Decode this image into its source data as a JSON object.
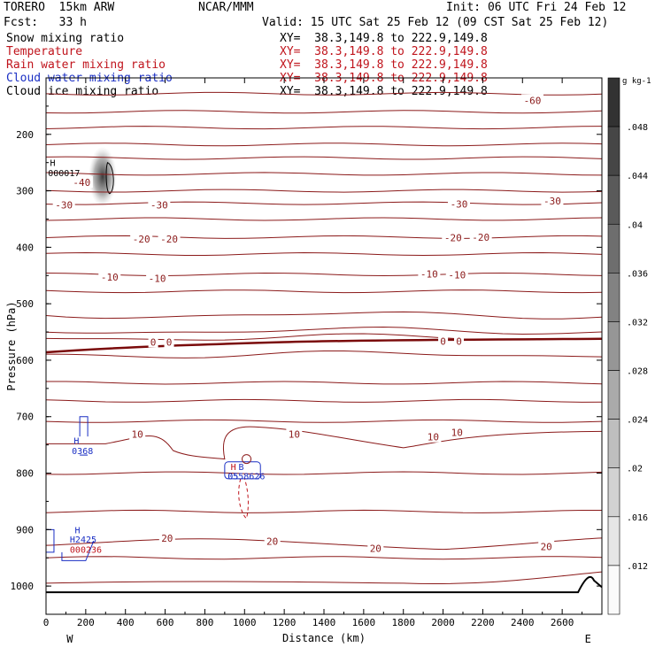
{
  "header": {
    "model": "TORERO  15km ARW",
    "center": "NCAR/MMM",
    "init": "Init: 06 UTC Fri 24 Feb 12",
    "fcst": "Fcst:   33 h",
    "valid": "Valid: 15 UTC Sat 25 Feb 12 (09 CST Sat 25 Feb 12)",
    "fields": [
      {
        "label": "Snow mixing ratio",
        "xy": "XY=  38.3,149.8 to 222.9,149.8",
        "color": "#000000"
      },
      {
        "label": "Temperature",
        "xy": "XY=  38.3,149.8 to 222.9,149.8",
        "color": "#c0141c"
      },
      {
        "label": "Rain water mixing ratio",
        "xy": "XY=  38.3,149.8 to 222.9,149.8",
        "color": "#c0141c"
      },
      {
        "label": "Cloud water mixing ratio",
        "xy": "XY=  38.3,149.8 to 222.9,149.8",
        "color": "#1a2fc4"
      },
      {
        "label": "Cloud ice mixing ratio",
        "xy": "XY=  38.3,149.8 to 222.9,149.8",
        "color": "#000000"
      }
    ]
  },
  "chart_data": {
    "type": "contour",
    "xlabel": "Distance (km)",
    "ylabel": "Pressure (hPa)",
    "xlim": [
      0,
      2800
    ],
    "ylim": [
      1050,
      100
    ],
    "x_ticks": [
      0,
      200,
      400,
      600,
      800,
      1000,
      1200,
      1400,
      1600,
      1800,
      2000,
      2200,
      2400,
      2600
    ],
    "y_ticks": [
      200,
      300,
      400,
      500,
      600,
      700,
      800,
      900,
      1000
    ],
    "x_end_labels": {
      "left": "W",
      "right": "E"
    },
    "colorbar": {
      "unit": "g kg-1",
      "ticks": [
        ".012",
        ".016",
        ".02",
        ".024",
        ".028",
        ".032",
        ".036",
        ".04",
        ".044",
        ".048"
      ]
    },
    "temperature_labels": [
      {
        "text": "-60",
        "x": 2450,
        "p": 140
      },
      {
        "text": "-40",
        "x": 180,
        "p": 285
      },
      {
        "text": "-30",
        "x": 90,
        "p": 325
      },
      {
        "text": "-30",
        "x": 570,
        "p": 325
      },
      {
        "text": "-30",
        "x": 2080,
        "p": 323
      },
      {
        "text": "-30",
        "x": 2550,
        "p": 318
      },
      {
        "text": "-20",
        "x": 480,
        "p": 385
      },
      {
        "text": "-20",
        "x": 620,
        "p": 385
      },
      {
        "text": "-20",
        "x": 2050,
        "p": 383
      },
      {
        "text": "-20",
        "x": 2190,
        "p": 382
      },
      {
        "text": "-10",
        "x": 320,
        "p": 453
      },
      {
        "text": "-10",
        "x": 560,
        "p": 455
      },
      {
        "text": "-10",
        "x": 1930,
        "p": 447
      },
      {
        "text": "-10",
        "x": 2070,
        "p": 449
      },
      {
        "text": "0",
        "x": 540,
        "p": 568
      },
      {
        "text": "0",
        "x": 620,
        "p": 568
      },
      {
        "text": "0",
        "x": 2000,
        "p": 566
      },
      {
        "text": "0",
        "x": 2080,
        "p": 566
      },
      {
        "text": "10",
        "x": 460,
        "p": 731
      },
      {
        "text": "10",
        "x": 1250,
        "p": 731
      },
      {
        "text": "10",
        "x": 1950,
        "p": 736
      },
      {
        "text": "10",
        "x": 2070,
        "p": 728
      },
      {
        "text": "20",
        "x": 610,
        "p": 915
      },
      {
        "text": "20",
        "x": 1140,
        "p": 921
      },
      {
        "text": "20",
        "x": 1660,
        "p": 933
      },
      {
        "text": "20",
        "x": 2520,
        "p": 930
      }
    ],
    "point_labels": [
      {
        "text": "H",
        "x": 20,
        "p": 250,
        "color": "#000000"
      },
      {
        "text": "000017",
        "x": 10,
        "p": 268,
        "color": "#000000"
      },
      {
        "text": "H",
        "x": 140,
        "p": 742,
        "color": "#1a2fc4"
      },
      {
        "text": "0368",
        "x": 130,
        "p": 760,
        "color": "#1a2fc4"
      },
      {
        "text": "H",
        "x": 930,
        "p": 788,
        "color": "#c0141c"
      },
      {
        "text": "05",
        "x": 915,
        "p": 805,
        "color": "#1a2fc4"
      },
      {
        "text": "B",
        "x": 970,
        "p": 788,
        "color": "#1a2fc4"
      },
      {
        "text": "0558626",
        "x": 915,
        "p": 805,
        "color": "#1a2fc4"
      },
      {
        "text": "H",
        "x": 145,
        "p": 900,
        "color": "#1a2fc4"
      },
      {
        "text": "H2425",
        "x": 120,
        "p": 917,
        "color": "#1a2fc4"
      },
      {
        "text": "000236",
        "x": 120,
        "p": 935,
        "color": "#c0141c"
      }
    ],
    "colors": {
      "temperature": "#8b1a1a",
      "freezing": "#7a0a0a",
      "cloud_water": "#1a2fc4",
      "rain": "#c0141c",
      "terrain": "#000000"
    }
  }
}
